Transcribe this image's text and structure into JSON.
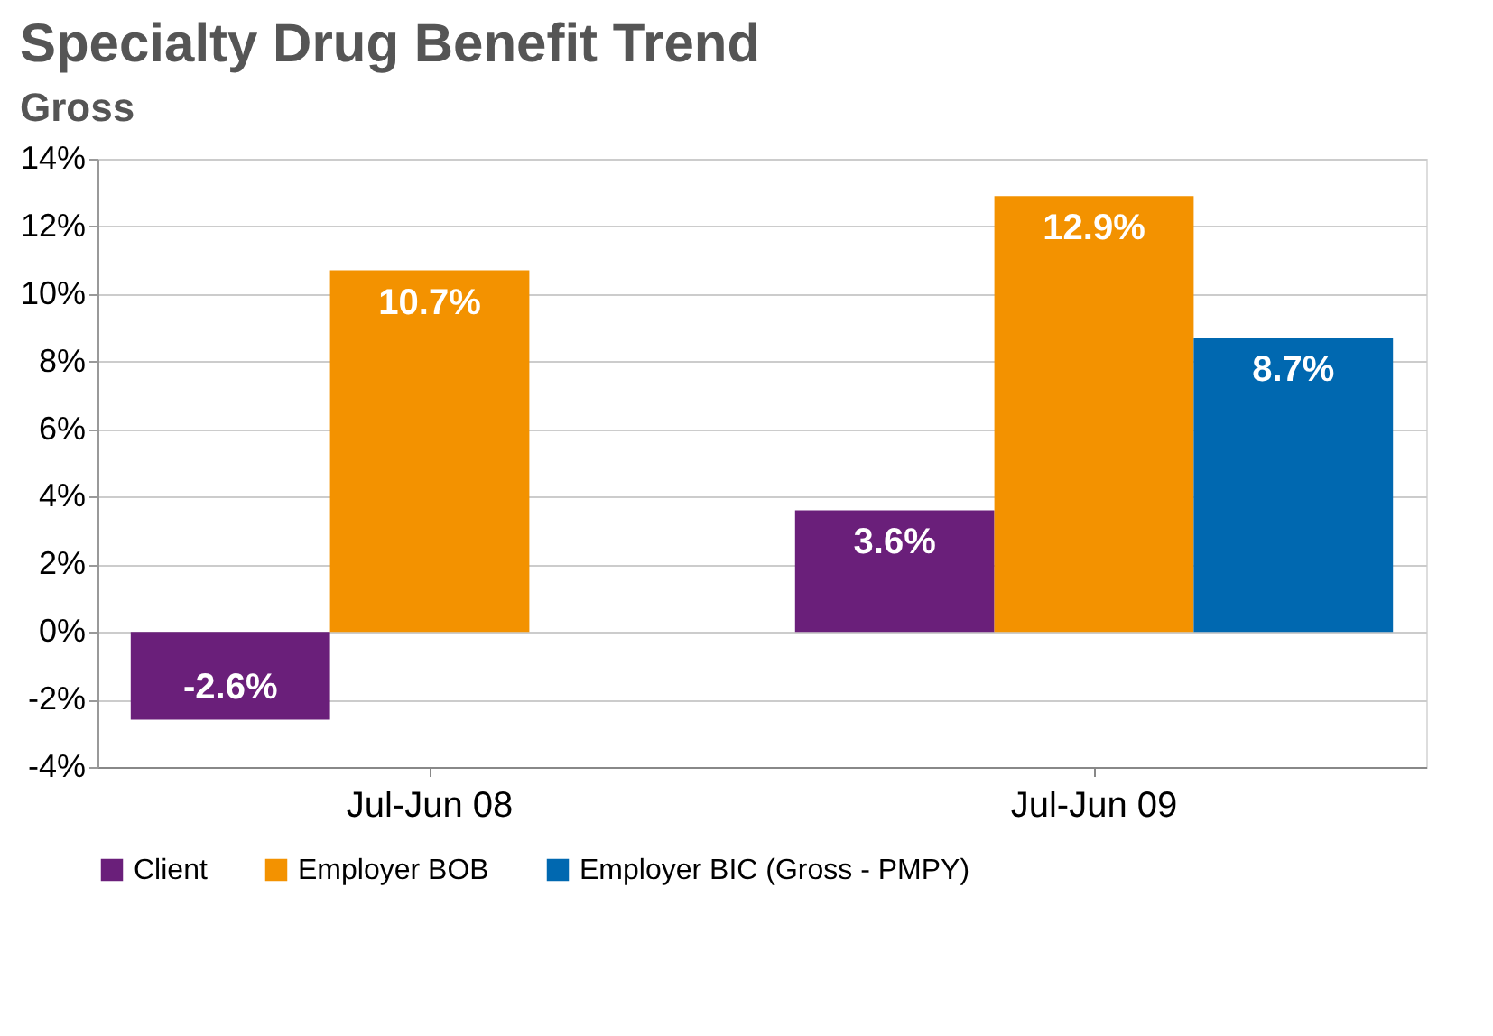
{
  "chart_data": {
    "type": "bar",
    "title": "Specialty Drug Benefit Trend",
    "subtitle": "Gross",
    "categories": [
      "Jul-Jun 08",
      "Jul-Jun 09"
    ],
    "series": [
      {
        "name": "Client",
        "color": "#6a1f7a",
        "values": [
          -2.6,
          3.6
        ],
        "value_labels": [
          "-2.6%",
          "3.6%"
        ]
      },
      {
        "name": "Employer BOB",
        "color": "#f39200",
        "values": [
          10.7,
          12.9
        ],
        "value_labels": [
          "10.7%",
          "12.9%"
        ]
      },
      {
        "name": "Employer BIC (Gross - PMPY)",
        "color": "#0068b0",
        "values": [
          null,
          8.7
        ],
        "value_labels": [
          null,
          "8.7%"
        ]
      }
    ],
    "ylim": [
      -4,
      14
    ],
    "yticks": [
      {
        "value": -4,
        "label": "-4%"
      },
      {
        "value": -2,
        "label": "-2%"
      },
      {
        "value": 0,
        "label": "0%"
      },
      {
        "value": 2,
        "label": "2%"
      },
      {
        "value": 4,
        "label": "4%"
      },
      {
        "value": 6,
        "label": "6%"
      },
      {
        "value": 8,
        "label": "8%"
      },
      {
        "value": 10,
        "label": "10%"
      },
      {
        "value": 12,
        "label": "12%"
      },
      {
        "value": 14,
        "label": "14%"
      }
    ],
    "grid": "y",
    "legend": "bottom left"
  }
}
